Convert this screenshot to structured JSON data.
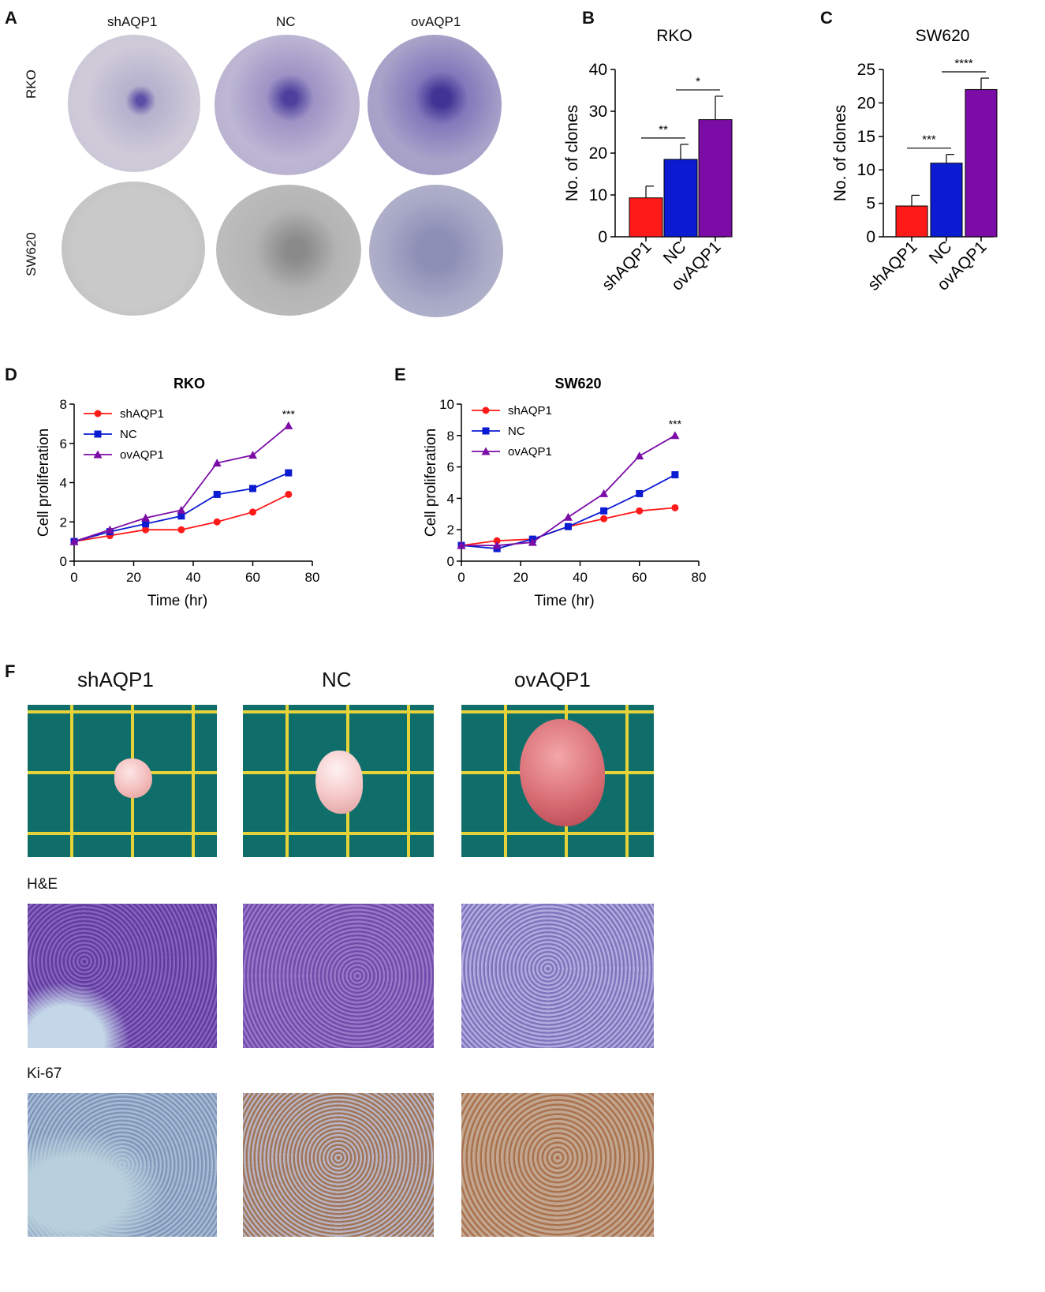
{
  "panels": {
    "A": {
      "letter": "A",
      "columns": [
        "shAQP1",
        "NC",
        "ovAQP1"
      ],
      "rows": [
        "RKO",
        "SW620"
      ]
    },
    "F": {
      "letter": "F",
      "columns": [
        "shAQP1",
        "NC",
        "ovAQP1"
      ],
      "rows": [
        "H&E",
        "Ki-67"
      ]
    }
  },
  "colors": {
    "shAQP1": "#ff1a1a",
    "NC": "#0b1bd1",
    "ovAQP1": "#7b0da6"
  },
  "chart_data": [
    {
      "id": "B",
      "letter": "B",
      "type": "bar",
      "title": "RKO",
      "ylabel": "No. of clones",
      "xlabel": "",
      "categories": [
        "shAQP1",
        "NC",
        "ovAQP1"
      ],
      "values": [
        9.3,
        18.5,
        28
      ],
      "errors": [
        2.8,
        3.6,
        5.6
      ],
      "ylim": [
        0,
        40
      ],
      "yticks": [
        0,
        10,
        20,
        30,
        40
      ],
      "significance": [
        {
          "from": 0,
          "to": 1,
          "label": "**"
        },
        {
          "from": 1,
          "to": 2,
          "label": "*"
        }
      ]
    },
    {
      "id": "C",
      "letter": "C",
      "type": "bar",
      "title": "SW620",
      "ylabel": "No. of clones",
      "xlabel": "",
      "categories": [
        "shAQP1",
        "NC",
        "ovAQP1"
      ],
      "values": [
        4.6,
        11,
        22
      ],
      "errors": [
        1.6,
        1.3,
        1.7
      ],
      "ylim": [
        0,
        25
      ],
      "yticks": [
        0,
        5,
        10,
        15,
        20,
        25
      ],
      "significance": [
        {
          "from": 0,
          "to": 1,
          "label": "***"
        },
        {
          "from": 1,
          "to": 2,
          "label": "****"
        }
      ]
    },
    {
      "id": "D",
      "letter": "D",
      "type": "line",
      "title": "RKO",
      "xlabel": "Time (hr)",
      "ylabel": "Cell proliferation",
      "x": [
        0,
        12,
        24,
        36,
        48,
        60,
        72
      ],
      "xlim": [
        0,
        80
      ],
      "xticks": [
        0,
        20,
        40,
        60,
        80
      ],
      "ylim": [
        0,
        8
      ],
      "yticks": [
        0,
        2,
        4,
        6,
        8
      ],
      "annotation": "***",
      "legend": "top-left",
      "series": [
        {
          "name": "shAQP1",
          "marker": "circle",
          "values": [
            1.0,
            1.3,
            1.6,
            1.6,
            2.0,
            2.5,
            3.4
          ]
        },
        {
          "name": "NC",
          "marker": "square",
          "values": [
            1.0,
            1.5,
            1.9,
            2.3,
            3.4,
            3.7,
            4.5
          ]
        },
        {
          "name": "ovAQP1",
          "marker": "triangle",
          "values": [
            1.0,
            1.6,
            2.2,
            2.6,
            5.0,
            5.4,
            6.9
          ]
        }
      ]
    },
    {
      "id": "E",
      "letter": "E",
      "type": "line",
      "title": "SW620",
      "xlabel": "Time (hr)",
      "ylabel": "Cell proliferation",
      "x": [
        0,
        12,
        24,
        36,
        48,
        60,
        72
      ],
      "xlim": [
        0,
        80
      ],
      "xticks": [
        0,
        20,
        40,
        60,
        80
      ],
      "ylim": [
        0,
        10
      ],
      "yticks": [
        0,
        2,
        4,
        6,
        8,
        10
      ],
      "annotation": "***",
      "legend": "top-left",
      "series": [
        {
          "name": "shAQP1",
          "marker": "circle",
          "values": [
            1.0,
            1.3,
            1.4,
            2.2,
            2.7,
            3.2,
            3.4
          ]
        },
        {
          "name": "NC",
          "marker": "square",
          "values": [
            1.0,
            0.8,
            1.4,
            2.2,
            3.2,
            4.3,
            5.5
          ]
        },
        {
          "name": "ovAQP1",
          "marker": "triangle",
          "values": [
            1.0,
            1.0,
            1.2,
            2.8,
            4.3,
            6.7,
            8.0
          ]
        }
      ]
    }
  ]
}
